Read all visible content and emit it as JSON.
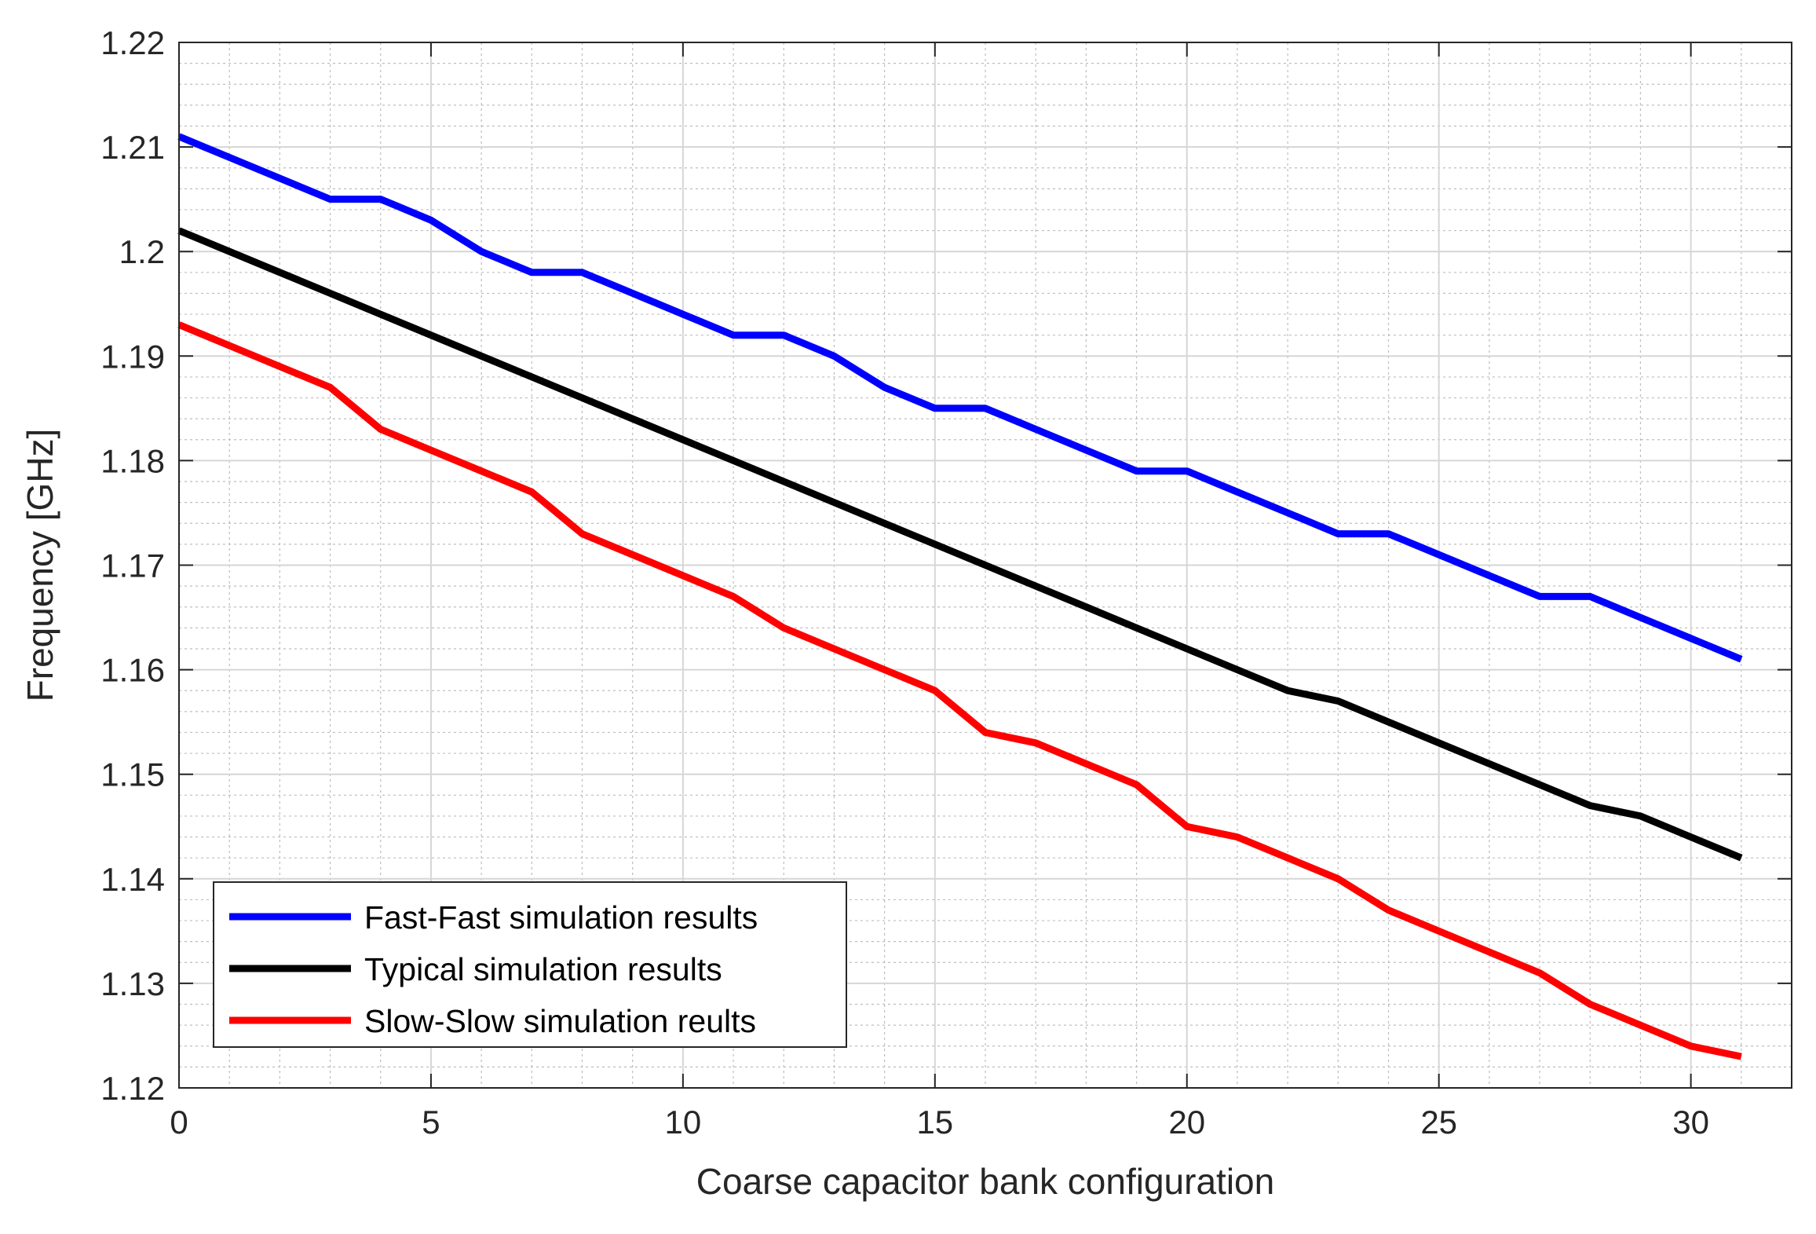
{
  "chart_data": {
    "type": "line",
    "title": "",
    "xlabel": "Coarse capacitor bank configuration",
    "ylabel": "Frequency [GHz]",
    "xlim": [
      0,
      32
    ],
    "ylim": [
      1.12,
      1.22
    ],
    "grid": true,
    "minor_grid": true,
    "legend_position": "bottom-left",
    "x_ticks": [
      0,
      5,
      10,
      15,
      20,
      25,
      30
    ],
    "x_tick_labels": [
      "0",
      "5",
      "10",
      "15",
      "20",
      "25",
      "30"
    ],
    "y_ticks": [
      1.12,
      1.13,
      1.14,
      1.15,
      1.16,
      1.17,
      1.18,
      1.19,
      1.2,
      1.21,
      1.22
    ],
    "y_tick_labels": [
      "1.12",
      "1.13",
      "1.14",
      "1.15",
      "1.16",
      "1.17",
      "1.18",
      "1.19",
      "1.2",
      "1.21",
      "1.22"
    ],
    "x": [
      0,
      1,
      2,
      3,
      4,
      5,
      6,
      7,
      8,
      9,
      10,
      11,
      12,
      13,
      14,
      15,
      16,
      17,
      18,
      19,
      20,
      21,
      22,
      23,
      24,
      25,
      26,
      27,
      28,
      29,
      30,
      31
    ],
    "series": [
      {
        "name": "Fast-Fast simulation results",
        "color": "#0000ff",
        "values": [
          1.211,
          1.209,
          1.207,
          1.205,
          1.205,
          1.203,
          1.2,
          1.198,
          1.198,
          1.196,
          1.194,
          1.192,
          1.192,
          1.19,
          1.187,
          1.185,
          1.185,
          1.183,
          1.181,
          1.179,
          1.179,
          1.177,
          1.175,
          1.173,
          1.173,
          1.171,
          1.169,
          1.167,
          1.167,
          1.165,
          1.163,
          1.161
        ]
      },
      {
        "name": "Typical simulation results",
        "color": "#000000",
        "values": [
          1.202,
          1.2,
          1.198,
          1.196,
          1.194,
          1.192,
          1.19,
          1.188,
          1.186,
          1.184,
          1.182,
          1.18,
          1.178,
          1.176,
          1.174,
          1.172,
          1.17,
          1.168,
          1.166,
          1.164,
          1.162,
          1.16,
          1.158,
          1.157,
          1.155,
          1.153,
          1.151,
          1.149,
          1.147,
          1.146,
          1.144,
          1.142
        ]
      },
      {
        "name": "Slow-Slow simulation reults",
        "color": "#ff0000",
        "values": [
          1.193,
          1.191,
          1.189,
          1.187,
          1.183,
          1.181,
          1.179,
          1.177,
          1.173,
          1.171,
          1.169,
          1.167,
          1.164,
          1.162,
          1.16,
          1.158,
          1.154,
          1.153,
          1.151,
          1.149,
          1.145,
          1.144,
          1.142,
          1.14,
          1.137,
          1.135,
          1.133,
          1.131,
          1.128,
          1.126,
          1.124,
          1.123
        ]
      }
    ]
  }
}
